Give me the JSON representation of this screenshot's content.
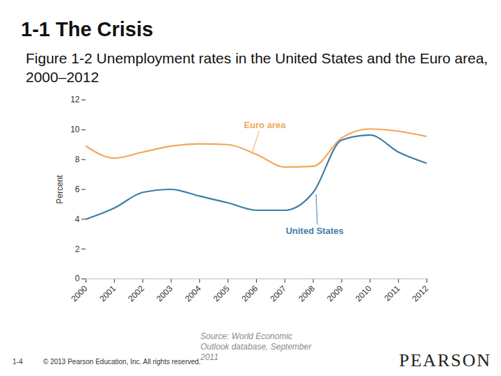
{
  "heading": "1-1 The Crisis",
  "footer": {
    "page": "1-4",
    "copyright": "© 2013 Pearson Education, Inc. All rights reserved.",
    "logo": "PEARSON"
  },
  "chart_data": {
    "type": "line",
    "title": "Figure 1-2  Unemployment rates in the United States and the Euro area, 2000–2012",
    "y_label": "Percent",
    "source": "Source: World Economic Outlook database, September 2011",
    "x": [
      2000,
      2001,
      2002,
      2003,
      2004,
      2005,
      2006,
      2007,
      2008,
      2009,
      2010,
      2011,
      2012
    ],
    "series": [
      {
        "name": "Euro area",
        "color": "#f2a65a",
        "values": [
          8.9,
          8.1,
          8.5,
          8.9,
          9.05,
          9.0,
          8.35,
          7.5,
          7.55,
          9.45,
          10.05,
          9.9,
          9.55
        ]
      },
      {
        "name": "United States",
        "color": "#3d7ea6",
        "values": [
          4.0,
          4.75,
          5.8,
          6.0,
          5.55,
          5.1,
          4.6,
          4.6,
          5.8,
          9.3,
          9.65,
          8.5,
          7.75
        ]
      }
    ],
    "xlim": [
      2000,
      2012
    ],
    "xticks": [
      2000,
      2001,
      2002,
      2003,
      2004,
      2005,
      2006,
      2007,
      2008,
      2009,
      2010,
      2011,
      2012
    ],
    "ylim": [
      0,
      12
    ],
    "yticks": [
      0,
      2,
      4,
      6,
      8,
      10,
      12
    ],
    "grid": false
  }
}
